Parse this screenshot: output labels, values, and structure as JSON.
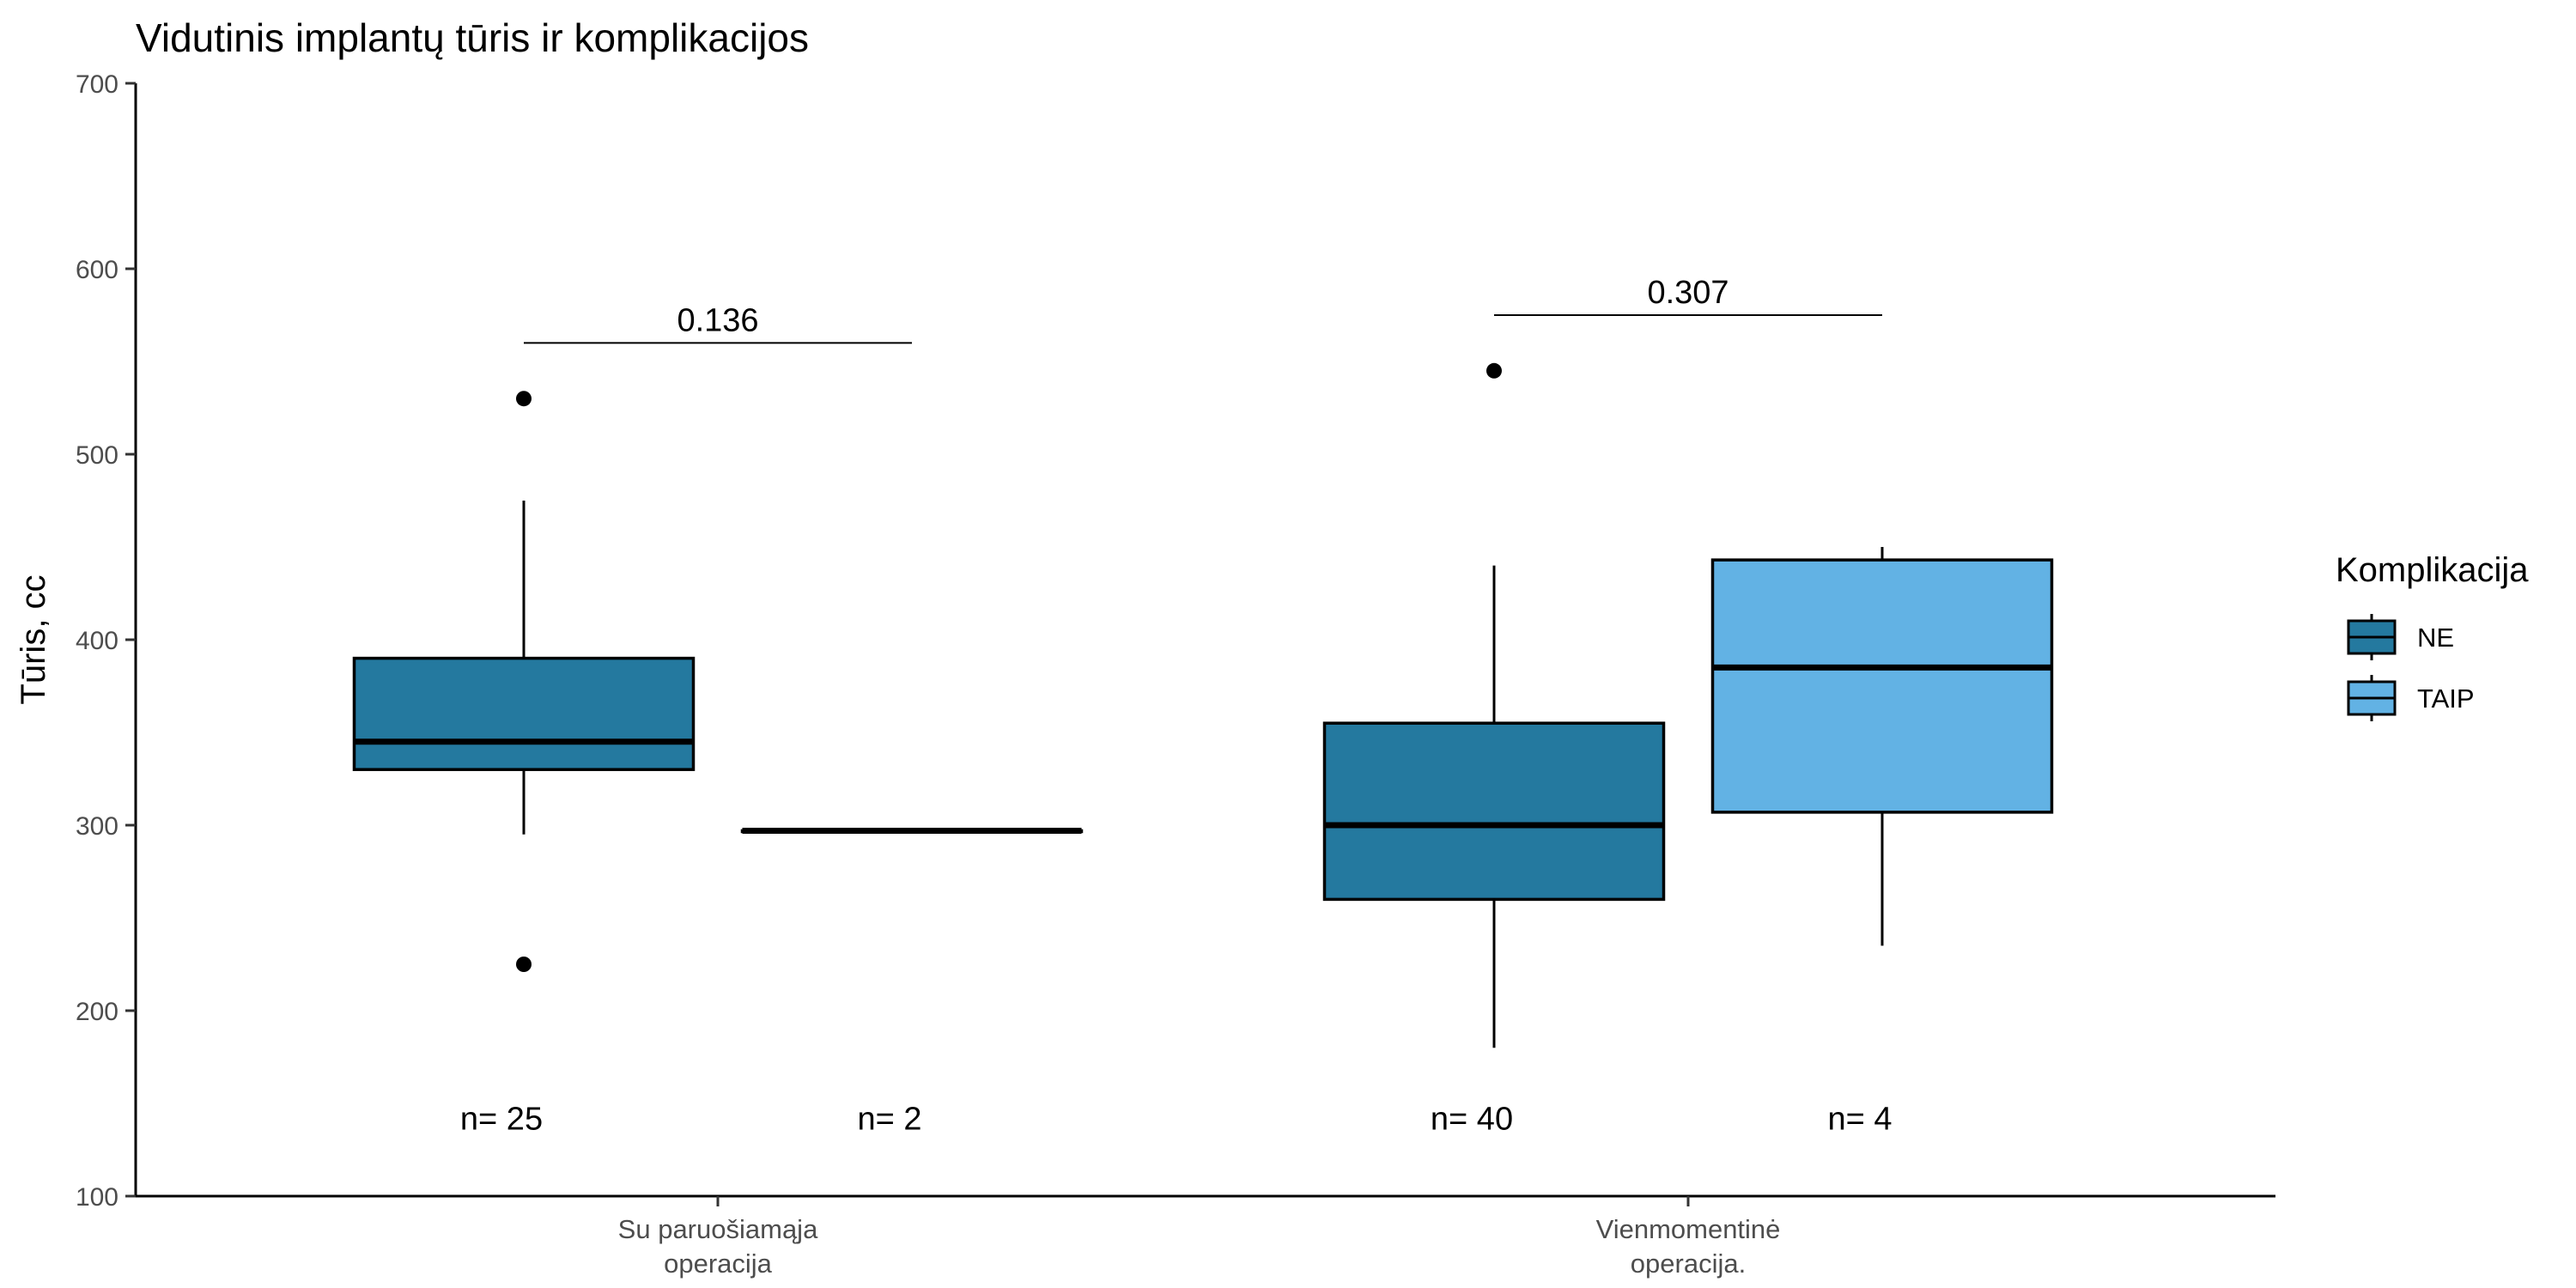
{
  "chart_data": {
    "type": "boxplot",
    "title": "Vidutinis implantų tūris ir komplikacijos",
    "ylabel": "Tūris, cc",
    "xlabel": "",
    "ylim": [
      100,
      700
    ],
    "yticks": [
      100,
      200,
      300,
      400,
      500,
      600,
      700
    ],
    "grid": false,
    "legend_position": "right",
    "legend": {
      "title": "Komplikacija",
      "entries": [
        {
          "label": "NE",
          "color": "#24799f"
        },
        {
          "label": "TAIP",
          "color": "#62b2e4"
        }
      ]
    },
    "categories": [
      {
        "line1": "Su paruošiamąja",
        "line2": "operacija"
      },
      {
        "line1": "Vienmomentinė",
        "line2": "operacija."
      }
    ],
    "groups": [
      {
        "category": 0,
        "pvalue_label": "0.136",
        "bracket_y": 560,
        "boxes": [
          {
            "series": "NE",
            "whisker_low": 295,
            "q1": 330,
            "median": 345,
            "q3": 390,
            "whisker_high": 475,
            "outliers": [
              530,
              225
            ],
            "n_label": "n= 25"
          },
          {
            "series": "TAIP",
            "whisker_low": 297,
            "q1": 297,
            "median": 297,
            "q3": 297,
            "whisker_high": 297,
            "outliers": [],
            "n_label": "n= 2"
          }
        ]
      },
      {
        "category": 1,
        "pvalue_label": "0.307",
        "bracket_y": 575,
        "boxes": [
          {
            "series": "NE",
            "whisker_low": 180,
            "q1": 260,
            "median": 300,
            "q3": 355,
            "whisker_high": 440,
            "outliers": [
              545
            ],
            "n_label": "n= 40"
          },
          {
            "series": "TAIP",
            "whisker_low": 235,
            "q1": 307,
            "median": 385,
            "q3": 443,
            "whisker_high": 450,
            "outliers": [],
            "n_label": "n= 4"
          }
        ]
      }
    ],
    "n_label_y": 142
  }
}
